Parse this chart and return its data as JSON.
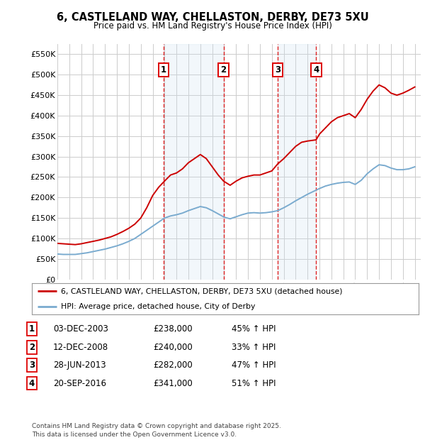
{
  "title": "6, CASTLELAND WAY, CHELLASTON, DERBY, DE73 5XU",
  "subtitle": "Price paid vs. HM Land Registry's House Price Index (HPI)",
  "ylim": [
    0,
    575000
  ],
  "yticks": [
    0,
    50000,
    100000,
    150000,
    200000,
    250000,
    300000,
    350000,
    400000,
    450000,
    500000,
    550000
  ],
  "xlim_start": 1995.0,
  "xlim_end": 2025.5,
  "background_color": "#ffffff",
  "plot_bg_color": "#ffffff",
  "grid_color": "#cccccc",
  "red_line_color": "#cc0000",
  "blue_line_color": "#7aabcf",
  "sale_markers": [
    {
      "year": 2003.92,
      "value": 238000,
      "label": "1"
    },
    {
      "year": 2008.95,
      "value": 240000,
      "label": "2"
    },
    {
      "year": 2013.49,
      "value": 282000,
      "label": "3"
    },
    {
      "year": 2016.72,
      "value": 341000,
      "label": "4"
    }
  ],
  "vline_color": "#dd0000",
  "vline_style": "--",
  "shade_color": "#cce0f0",
  "legend_items": [
    {
      "label": "6, CASTLELAND WAY, CHELLASTON, DERBY, DE73 5XU (detached house)",
      "color": "#cc0000"
    },
    {
      "label": "HPI: Average price, detached house, City of Derby",
      "color": "#7aabcf"
    }
  ],
  "table_rows": [
    {
      "num": "1",
      "date": "03-DEC-2003",
      "price": "£238,000",
      "hpi": "45% ↑ HPI"
    },
    {
      "num": "2",
      "date": "12-DEC-2008",
      "price": "£240,000",
      "hpi": "33% ↑ HPI"
    },
    {
      "num": "3",
      "date": "28-JUN-2013",
      "price": "£282,000",
      "hpi": "47% ↑ HPI"
    },
    {
      "num": "4",
      "date": "20-SEP-2016",
      "price": "£341,000",
      "hpi": "51% ↑ HPI"
    }
  ],
  "footer": "Contains HM Land Registry data © Crown copyright and database right 2025.\nThis data is licensed under the Open Government Licence v3.0.",
  "red_line_data": {
    "x": [
      1995.0,
      1995.5,
      1996.0,
      1996.5,
      1997.0,
      1997.5,
      1998.0,
      1998.5,
      1999.0,
      1999.5,
      2000.0,
      2000.5,
      2001.0,
      2001.5,
      2002.0,
      2002.5,
      2003.0,
      2003.5,
      2003.92,
      2004.5,
      2005.0,
      2005.5,
      2006.0,
      2006.5,
      2007.0,
      2007.5,
      2008.0,
      2008.5,
      2008.95,
      2009.5,
      2010.0,
      2010.5,
      2011.0,
      2011.5,
      2012.0,
      2012.5,
      2013.0,
      2013.49,
      2014.0,
      2014.5,
      2015.0,
      2015.5,
      2016.0,
      2016.5,
      2016.72,
      2017.0,
      2017.5,
      2018.0,
      2018.5,
      2019.0,
      2019.5,
      2020.0,
      2020.5,
      2021.0,
      2021.5,
      2022.0,
      2022.5,
      2023.0,
      2023.5,
      2024.0,
      2024.5,
      2025.0
    ],
    "y": [
      88000,
      87000,
      86000,
      85000,
      87000,
      90000,
      93000,
      96000,
      100000,
      104000,
      110000,
      117000,
      125000,
      135000,
      150000,
      175000,
      205000,
      225000,
      238000,
      255000,
      260000,
      270000,
      285000,
      295000,
      305000,
      295000,
      275000,
      255000,
      240000,
      230000,
      240000,
      248000,
      252000,
      255000,
      255000,
      260000,
      265000,
      282000,
      295000,
      310000,
      325000,
      335000,
      338000,
      340000,
      341000,
      355000,
      370000,
      385000,
      395000,
      400000,
      405000,
      395000,
      415000,
      440000,
      460000,
      475000,
      468000,
      455000,
      450000,
      455000,
      462000,
      470000
    ]
  },
  "blue_line_data": {
    "x": [
      1995.0,
      1995.5,
      1996.0,
      1996.5,
      1997.0,
      1997.5,
      1998.0,
      1998.5,
      1999.0,
      1999.5,
      2000.0,
      2000.5,
      2001.0,
      2001.5,
      2002.0,
      2002.5,
      2003.0,
      2003.5,
      2004.0,
      2004.5,
      2005.0,
      2005.5,
      2006.0,
      2006.5,
      2007.0,
      2007.5,
      2008.0,
      2008.5,
      2009.0,
      2009.5,
      2010.0,
      2010.5,
      2011.0,
      2011.5,
      2012.0,
      2012.5,
      2013.0,
      2013.5,
      2014.0,
      2014.5,
      2015.0,
      2015.5,
      2016.0,
      2016.5,
      2017.0,
      2017.5,
      2018.0,
      2018.5,
      2019.0,
      2019.5,
      2020.0,
      2020.5,
      2021.0,
      2021.5,
      2022.0,
      2022.5,
      2023.0,
      2023.5,
      2024.0,
      2024.5,
      2025.0
    ],
    "y": [
      62000,
      61000,
      61000,
      61000,
      63000,
      65000,
      68000,
      71000,
      74000,
      78000,
      82000,
      87000,
      93000,
      100000,
      110000,
      120000,
      130000,
      140000,
      150000,
      155000,
      158000,
      162000,
      168000,
      173000,
      178000,
      175000,
      168000,
      160000,
      152000,
      148000,
      153000,
      158000,
      162000,
      163000,
      162000,
      163000,
      165000,
      168000,
      175000,
      183000,
      192000,
      200000,
      208000,
      215000,
      222000,
      228000,
      232000,
      235000,
      237000,
      238000,
      232000,
      242000,
      258000,
      270000,
      280000,
      278000,
      272000,
      268000,
      268000,
      270000,
      275000
    ]
  }
}
